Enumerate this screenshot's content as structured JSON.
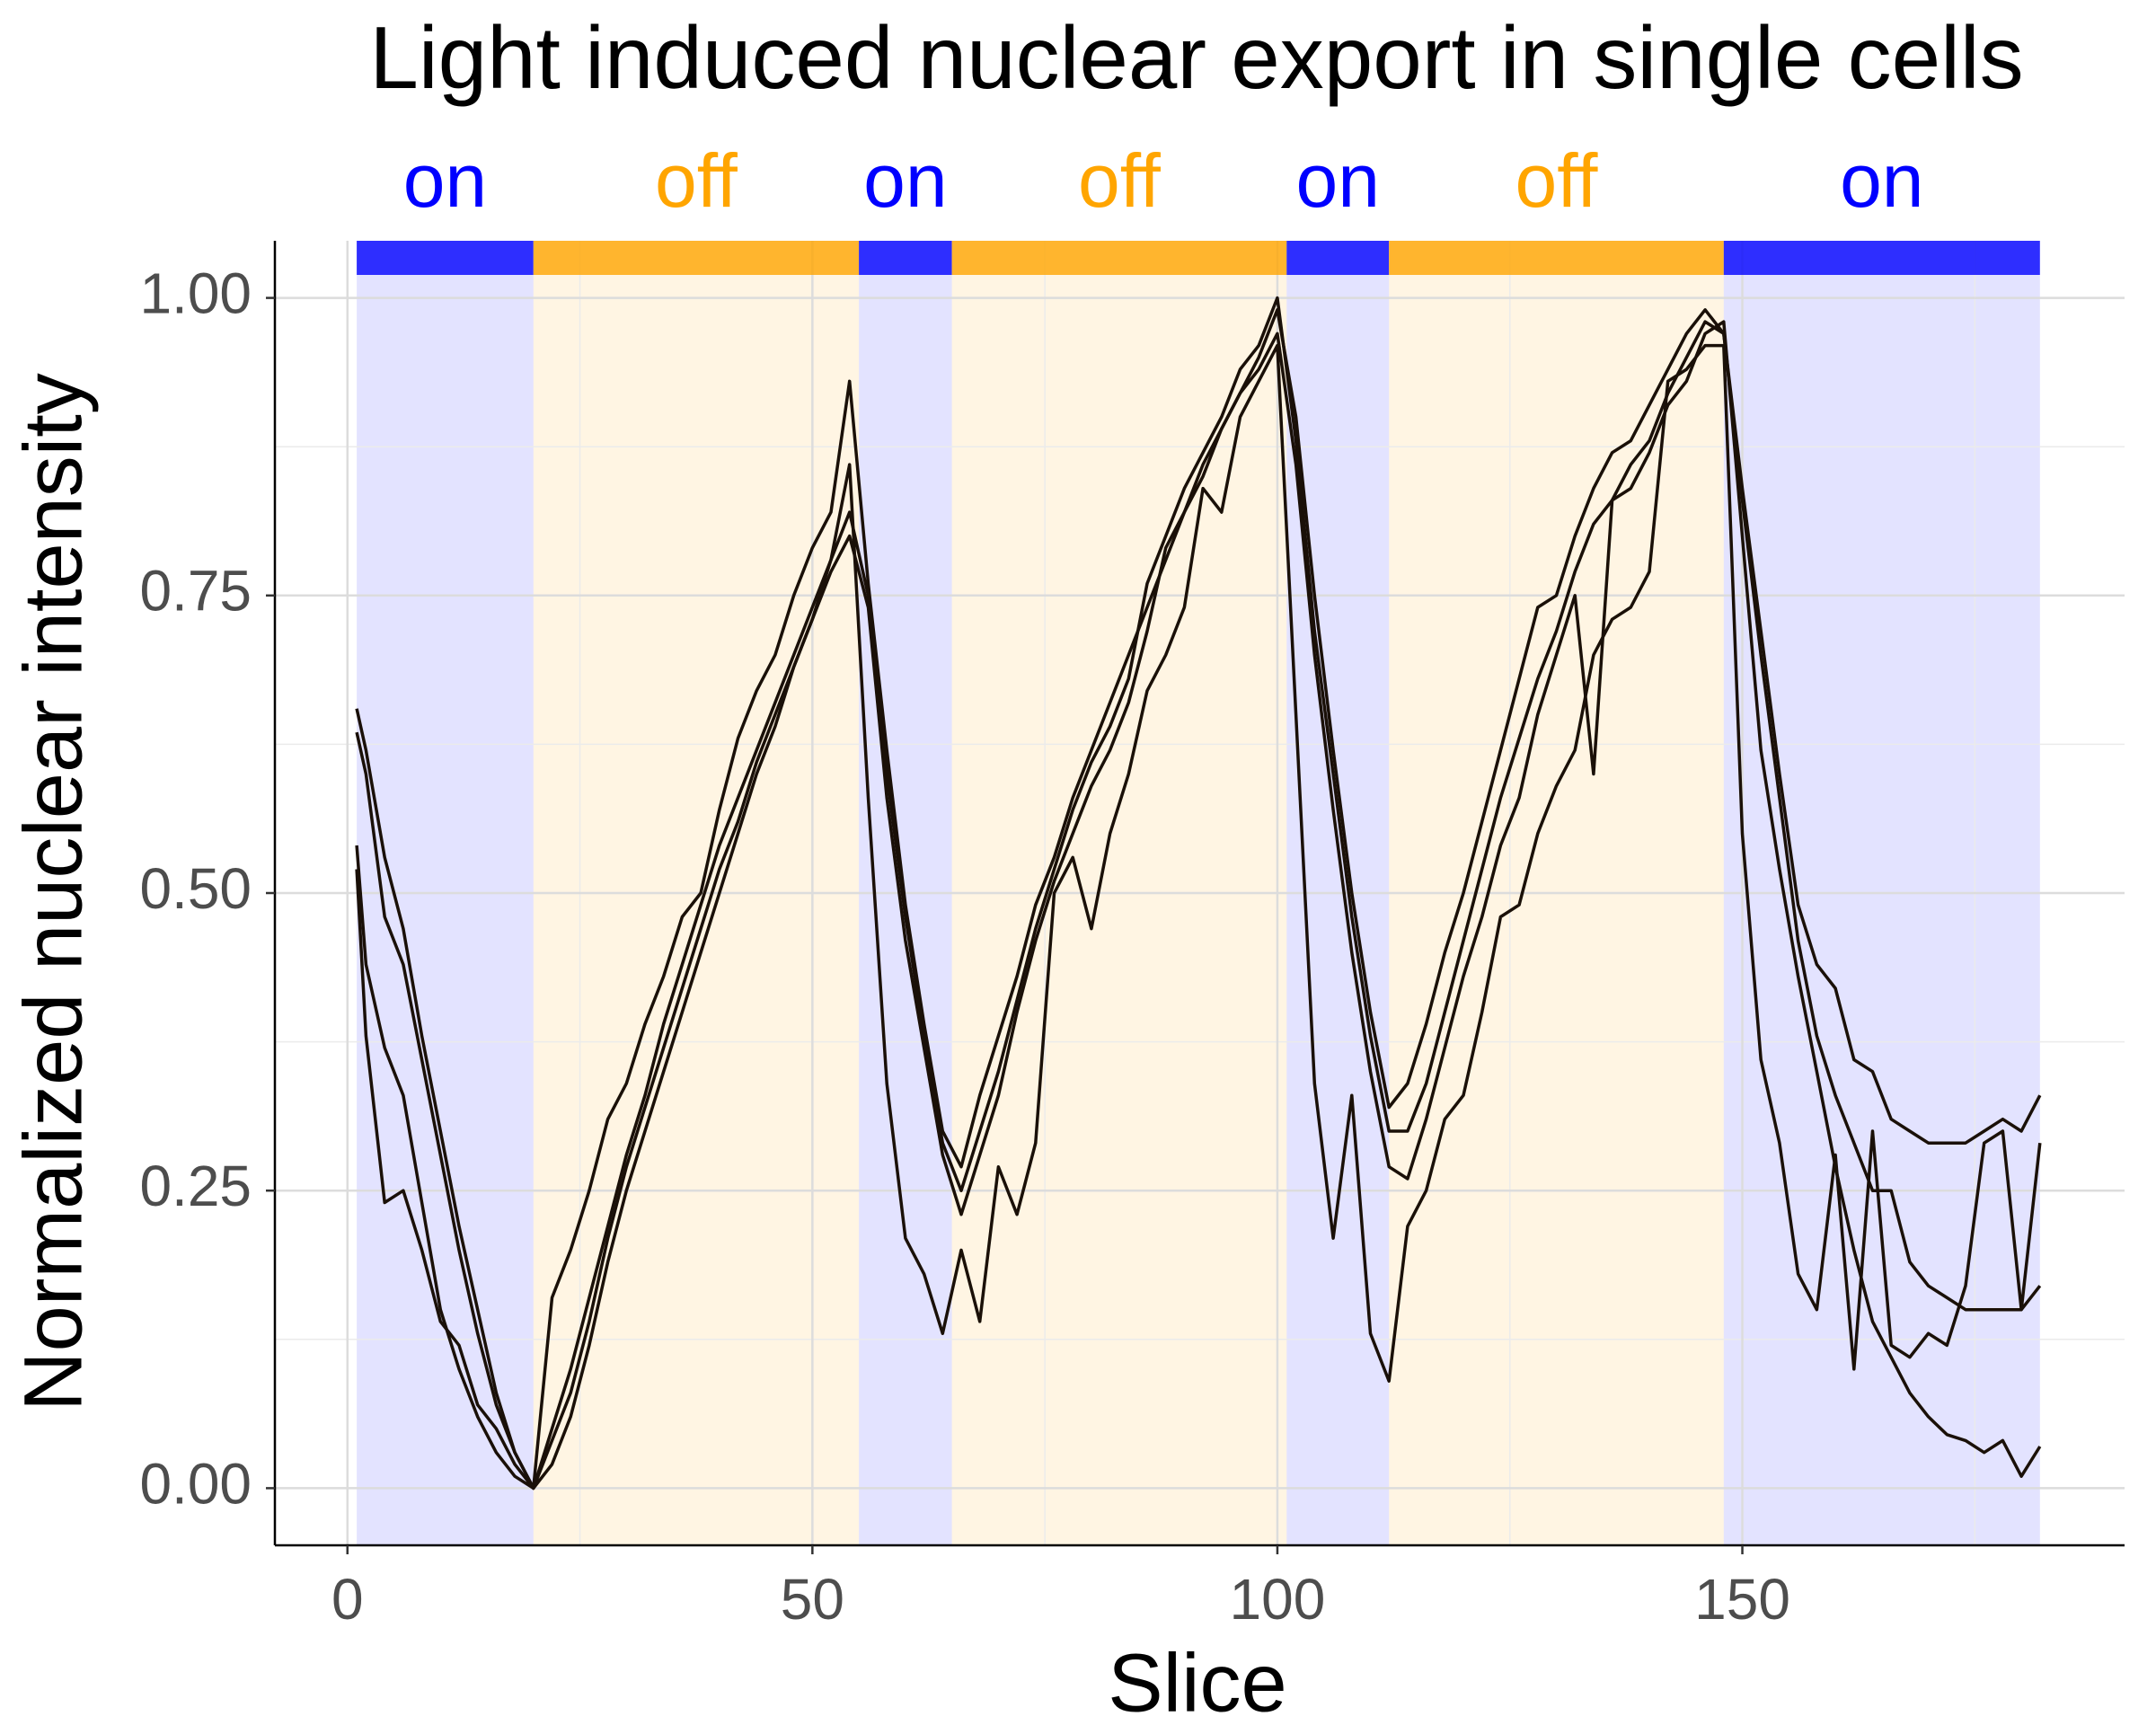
{
  "chart_data": {
    "type": "line",
    "title": "Light induced nuclear export in single cells",
    "x_label": "Slice",
    "y_label": "Normalized nuclear intensity",
    "xlim": [
      -7.8,
      191.1
    ],
    "ylim": [
      -0.048,
      1.048
    ],
    "xticks": [
      0,
      50,
      100,
      150
    ],
    "yticks": [
      {
        "value": 0,
        "label": "0.00"
      },
      0.25,
      {
        "value": 0.5,
        "label": "0.50"
      },
      0.75,
      {
        "value": 1,
        "label": "1.00"
      }
    ],
    "xminorticks": [
      25,
      75,
      125,
      175
    ],
    "yminorticks": [
      0.125,
      0.375,
      0.625,
      0.875
    ],
    "grid": true,
    "phases": [
      {
        "label": "on",
        "start": 1,
        "end": 20,
        "color": "#0000ff"
      },
      {
        "label": "off",
        "start": 20,
        "end": 55,
        "color": "#ffa500"
      },
      {
        "label": "on",
        "start": 55,
        "end": 65,
        "color": "#0000ff"
      },
      {
        "label": "off",
        "start": 65,
        "end": 101,
        "color": "#ffa500"
      },
      {
        "label": "on",
        "start": 101,
        "end": 112,
        "color": "#0000ff"
      },
      {
        "label": "off",
        "start": 112,
        "end": 148,
        "color": "#ffa500"
      },
      {
        "label": "on",
        "start": 148,
        "end": 182,
        "color": "#0000ff"
      }
    ],
    "x": [
      1,
      2,
      4,
      6,
      8,
      10,
      12,
      14,
      16,
      18,
      20,
      22,
      24,
      26,
      28,
      30,
      32,
      34,
      36,
      38,
      40,
      42,
      44,
      46,
      48,
      50,
      52,
      54,
      56,
      58,
      60,
      62,
      64,
      66,
      68,
      70,
      72,
      74,
      76,
      78,
      80,
      82,
      84,
      86,
      88,
      90,
      92,
      94,
      96,
      98,
      100,
      102,
      104,
      106,
      108,
      110,
      112,
      114,
      116,
      118,
      120,
      122,
      124,
      126,
      128,
      130,
      132,
      134,
      136,
      138,
      140,
      142,
      144,
      146,
      148,
      150,
      152,
      154,
      156,
      158,
      160,
      162,
      164,
      166,
      168,
      170,
      172,
      174,
      176,
      178,
      180,
      182
    ],
    "series": [
      {
        "color": "#1a1008",
        "values": [
          0.655,
          0.62,
          0.53,
          0.47,
          0.38,
          0.3,
          0.22,
          0.15,
          0.08,
          0.03,
          0,
          0.16,
          0.2,
          0.25,
          0.31,
          0.34,
          0.39,
          0.43,
          0.48,
          0.5,
          0.57,
          0.63,
          0.67,
          0.7,
          0.75,
          0.79,
          0.82,
          0.93,
          0.76,
          0.62,
          0.49,
          0.39,
          0.3,
          0.27,
          0.33,
          0.38,
          0.43,
          0.49,
          0.53,
          0.58,
          0.62,
          0.66,
          0.7,
          0.74,
          0.78,
          0.82,
          0.86,
          0.89,
          0.92,
          0.95,
          0.99,
          0.9,
          0.75,
          0.62,
          0.5,
          0.4,
          0.32,
          0.34,
          0.39,
          0.45,
          0.5,
          0.56,
          0.62,
          0.68,
          0.74,
          0.75,
          0.8,
          0.84,
          0.87,
          0.88,
          0.91,
          0.94,
          0.97,
          0.99,
          0.97,
          0.84,
          0.72,
          0.6,
          0.49,
          0.44,
          0.42,
          0.36,
          0.35,
          0.31,
          0.3,
          0.29,
          0.29,
          0.29,
          0.3,
          0.31,
          0.3,
          0.33
        ]
      },
      {
        "color": "#1a1008",
        "values": [
          0.635,
          0.6,
          0.48,
          0.44,
          0.36,
          0.28,
          0.2,
          0.13,
          0.07,
          0.03,
          0,
          0.05,
          0.1,
          0.16,
          0.22,
          0.28,
          0.33,
          0.39,
          0.44,
          0.49,
          0.54,
          0.58,
          0.62,
          0.66,
          0.7,
          0.74,
          0.78,
          0.82,
          0.75,
          0.6,
          0.48,
          0.38,
          0.29,
          0.25,
          0.3,
          0.35,
          0.41,
          0.47,
          0.52,
          0.57,
          0.61,
          0.64,
          0.68,
          0.76,
          0.8,
          0.84,
          0.87,
          0.9,
          0.94,
          0.96,
          1.0,
          0.88,
          0.72,
          0.6,
          0.48,
          0.38,
          0.3,
          0.3,
          0.34,
          0.4,
          0.46,
          0.52,
          0.58,
          0.63,
          0.68,
          0.72,
          0.77,
          0.81,
          0.83,
          0.86,
          0.88,
          0.92,
          0.95,
          0.98,
          0.97,
          0.83,
          0.7,
          0.58,
          0.46,
          0.38,
          0.33,
          0.29,
          0.25,
          0.25,
          0.19,
          0.17,
          0.16,
          0.15,
          0.15,
          0.15,
          0.15,
          0.17
        ]
      },
      {
        "color": "#1a1008",
        "values": [
          0.54,
          0.44,
          0.37,
          0.33,
          0.24,
          0.15,
          0.1,
          0.06,
          0.03,
          0.01,
          0,
          0.04,
          0.08,
          0.14,
          0.21,
          0.27,
          0.32,
          0.37,
          0.42,
          0.47,
          0.52,
          0.56,
          0.61,
          0.65,
          0.69,
          0.73,
          0.77,
          0.8,
          0.74,
          0.58,
          0.46,
          0.37,
          0.28,
          0.23,
          0.28,
          0.33,
          0.4,
          0.46,
          0.51,
          0.55,
          0.59,
          0.62,
          0.66,
          0.72,
          0.79,
          0.82,
          0.85,
          0.89,
          0.92,
          0.94,
          0.97,
          0.86,
          0.7,
          0.57,
          0.45,
          0.35,
          0.27,
          0.26,
          0.31,
          0.37,
          0.43,
          0.48,
          0.54,
          0.58,
          0.65,
          0.7,
          0.75,
          0.6,
          0.83,
          0.84,
          0.87,
          0.91,
          0.93,
          0.97,
          0.98,
          0.8,
          0.62,
          0.52,
          0.43,
          0.35,
          0.27,
          0.2,
          0.14,
          0.11,
          0.08,
          0.06,
          0.045,
          0.04,
          0.03,
          0.04,
          0.01,
          0.035
        ]
      },
      {
        "color": "#1a1008",
        "values": [
          0.52,
          0.38,
          0.24,
          0.25,
          0.2,
          0.14,
          0.12,
          0.07,
          0.05,
          0.02,
          0,
          0.02,
          0.06,
          0.12,
          0.19,
          0.25,
          0.3,
          0.35,
          0.4,
          0.45,
          0.5,
          0.55,
          0.6,
          0.64,
          0.69,
          0.73,
          0.78,
          0.86,
          0.58,
          0.34,
          0.21,
          0.18,
          0.13,
          0.2,
          0.14,
          0.27,
          0.23,
          0.29,
          0.5,
          0.53,
          0.47,
          0.55,
          0.6,
          0.67,
          0.7,
          0.74,
          0.84,
          0.82,
          0.9,
          0.93,
          0.96,
          0.65,
          0.34,
          0.21,
          0.33,
          0.13,
          0.09,
          0.22,
          0.25,
          0.31,
          0.33,
          0.4,
          0.48,
          0.49,
          0.55,
          0.59,
          0.62,
          0.7,
          0.73,
          0.74,
          0.77,
          0.93,
          0.94,
          0.96,
          0.96,
          0.55,
          0.36,
          0.29,
          0.18,
          0.15,
          0.28,
          0.1,
          0.3,
          0.12,
          0.11,
          0.13,
          0.12,
          0.17,
          0.29,
          0.3,
          0.15,
          0.29
        ]
      }
    ]
  }
}
